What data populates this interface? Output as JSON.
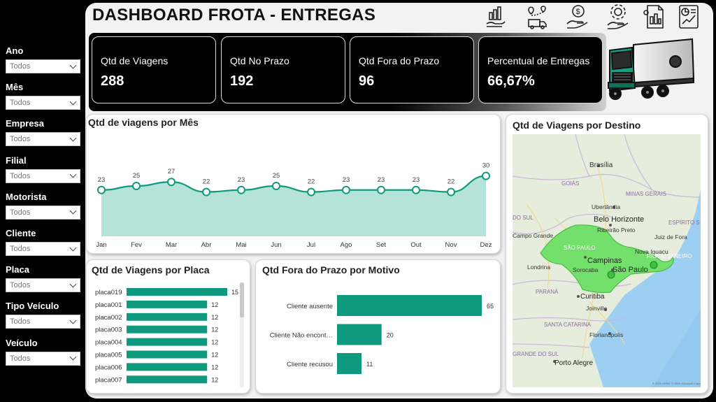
{
  "dashboard": {
    "title": "DASHBOARD FROTA - ENTREGAS"
  },
  "filters": [
    {
      "label": "Ano",
      "value": "Todos"
    },
    {
      "label": "Mês",
      "value": "Todos"
    },
    {
      "label": "Empresa",
      "value": "Todos"
    },
    {
      "label": "Filial",
      "value": "Todos"
    },
    {
      "label": "Motorista",
      "value": "Todos"
    },
    {
      "label": "Cliente",
      "value": "Todos"
    },
    {
      "label": "Placa",
      "value": "Todos"
    },
    {
      "label": "Tipo Veículo",
      "value": "Todos"
    },
    {
      "label": "Veículo",
      "value": "Todos"
    }
  ],
  "top_icons": [
    "finance-growth-icon",
    "delivery-route-icon",
    "payment-hand-icon",
    "service-gear-icon",
    "report-document-icon",
    "analytics-chart-icon"
  ],
  "kpis": [
    {
      "label": "Qtd de Viagens",
      "value": "288"
    },
    {
      "label": "Qtd No Prazo",
      "value": "192"
    },
    {
      "label": "Qtd Fora do Prazo",
      "value": "96"
    },
    {
      "label": "Percentual de Entregas",
      "value": "66,67%"
    }
  ],
  "colors": {
    "accent": "#0f9a7f",
    "area_fill": "#b5e3d9",
    "kpi_bg": "#000000",
    "panel": "#f2f2f2",
    "map_region": "#72e06a"
  },
  "monthly_card": {
    "title": "Qtd de viagens por Mês"
  },
  "plate_card": {
    "title": "Qtd de Viagens por Placa"
  },
  "reason_card": {
    "title": "Qtd Fora do Prazo por Motivo"
  },
  "map_card": {
    "title": "Qtd de Viagens por Destino",
    "labels": [
      "Brasília",
      "GOIÁS",
      "MINAS GERAIS",
      "Uberlândia",
      "Belo Horizonte",
      "ESPÍRITO S",
      "DO SUL",
      "Ribeirão Preto",
      "Campo Grande",
      "SÃO PAULO",
      "Juiz de Fora",
      "Nova Iguaçu",
      "RIO DE JANEIRO",
      "Campinas",
      "Londrina",
      "Sorocaba",
      "São Paulo",
      "PARANÁ",
      "Curitiba",
      "Joinville",
      "SANTA CATARINA",
      "Florianópolis",
      "GRANDE DO SUL",
      "Porto Alegre",
      "© 2023 HERE, © 2023 Microsoft Corporation  Termos"
    ]
  },
  "chart_data": [
    {
      "type": "area",
      "title": "Qtd de viagens por Mês",
      "categories": [
        "Jan",
        "Fev",
        "Mar",
        "Abr",
        "Mai",
        "Jun",
        "Jul",
        "Ago",
        "Set",
        "Out",
        "Nov",
        "Dez"
      ],
      "values": [
        23,
        25,
        27,
        22,
        23,
        25,
        22,
        23,
        23,
        23,
        22,
        30
      ]
    },
    {
      "type": "bar",
      "orientation": "horizontal",
      "title": "Qtd de Viagens por Placa",
      "categories": [
        "placa019",
        "placa001",
        "placa002",
        "placa003",
        "placa004",
        "placa005",
        "placa006",
        "placa007"
      ],
      "values": [
        15,
        12,
        12,
        12,
        12,
        12,
        12,
        12
      ]
    },
    {
      "type": "bar",
      "orientation": "horizontal",
      "title": "Qtd Fora do Prazo por Motivo",
      "categories": [
        "Cliente ausente",
        "Cliente Não encont…",
        "Cliente recusou"
      ],
      "values": [
        65,
        20,
        11
      ]
    }
  ]
}
